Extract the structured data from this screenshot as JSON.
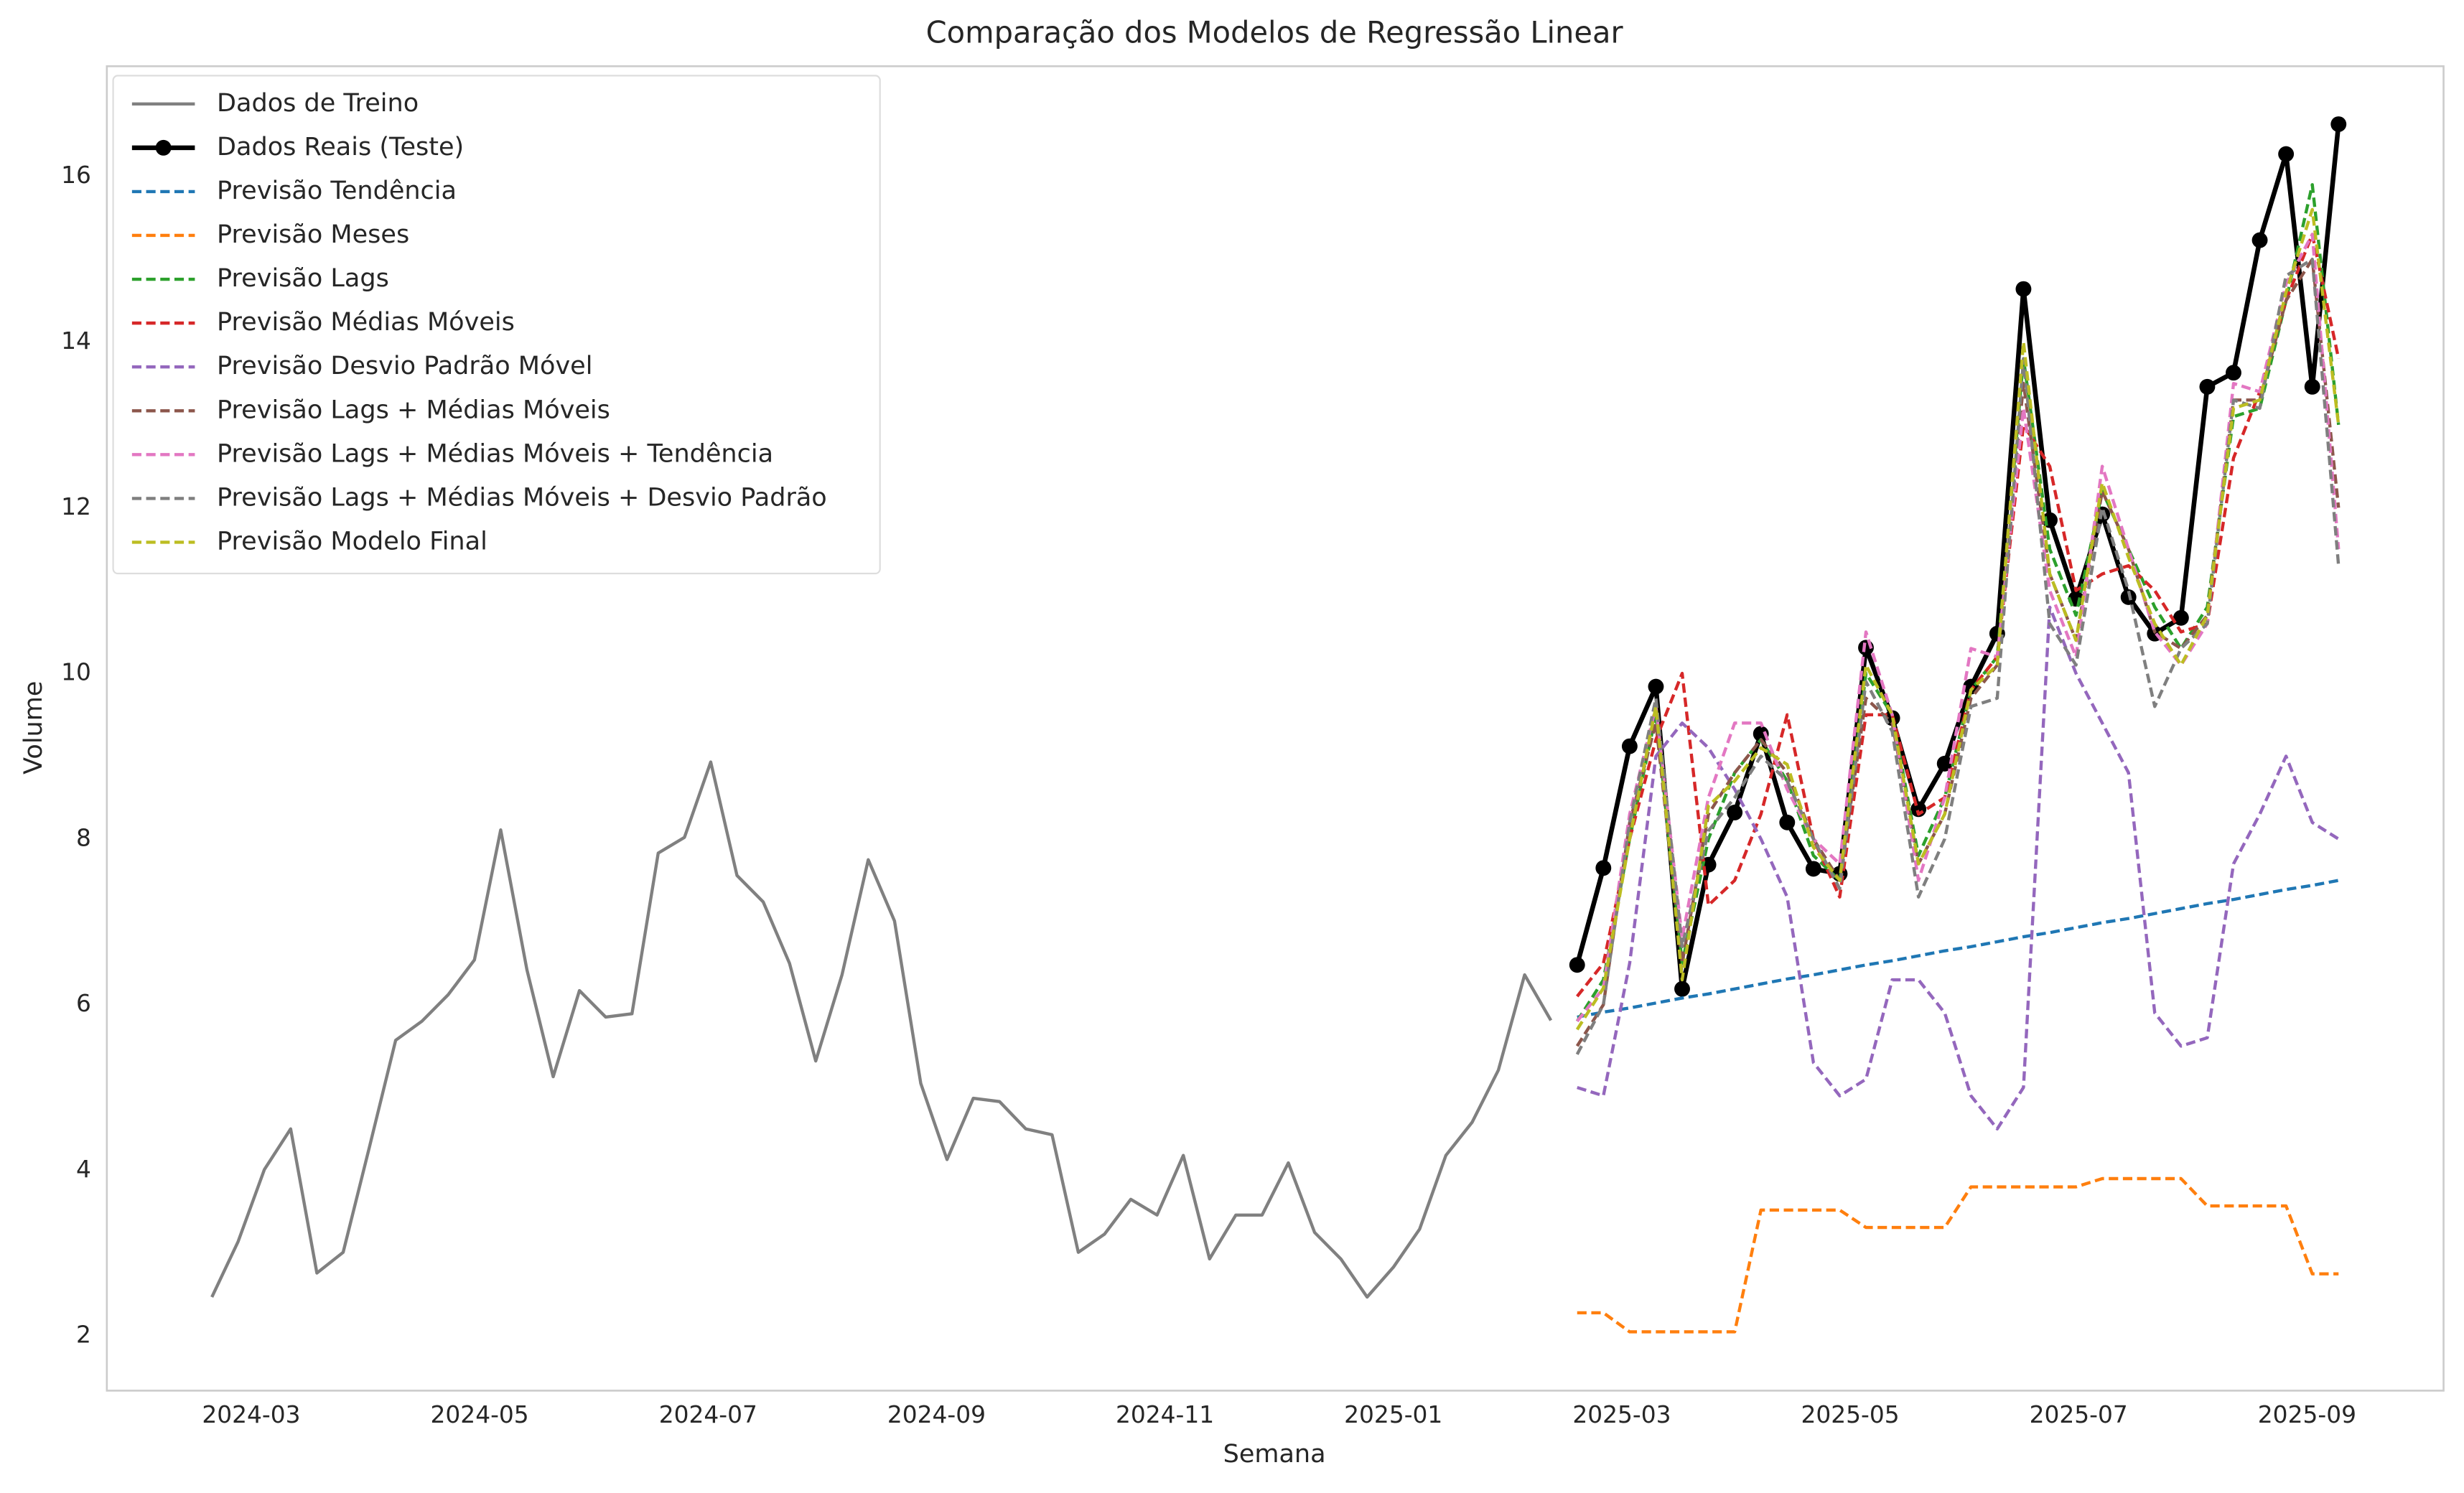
{
  "chart_data": {
    "type": "line",
    "title": "Comparação dos Modelos de Regressão Linear",
    "x_label": "Semana",
    "y_label": "Volume",
    "xlim": [
      -4,
      85
    ],
    "ylim": [
      1.34,
      17.33
    ],
    "grid": false,
    "legend": "upper left",
    "xticks": [
      {
        "value": 1.5,
        "label": "2024-03"
      },
      {
        "value": 10.2,
        "label": "2024-05"
      },
      {
        "value": 18.9,
        "label": "2024-07"
      },
      {
        "value": 27.6,
        "label": "2024-09"
      },
      {
        "value": 36.3,
        "label": "2024-11"
      },
      {
        "value": 45.0,
        "label": "2025-01"
      },
      {
        "value": 53.7,
        "label": "2025-03"
      },
      {
        "value": 62.4,
        "label": "2025-05"
      },
      {
        "value": 71.1,
        "label": "2025-07"
      },
      {
        "value": 79.8,
        "label": "2025-09"
      }
    ],
    "yticks": [
      2,
      4,
      6,
      8,
      10,
      12,
      14,
      16
    ],
    "series": [
      {
        "name": "Dados de Treino",
        "color": "#808080",
        "style": "solid",
        "width": 2,
        "marker": false,
        "x": [
          0,
          1,
          2,
          3,
          4,
          5,
          6,
          7,
          8,
          9,
          10,
          11,
          12,
          13,
          14,
          15,
          16,
          17,
          18,
          19,
          20,
          21,
          22,
          23,
          24,
          25,
          26,
          27,
          28,
          29,
          30,
          31,
          32,
          33,
          34,
          35,
          36,
          37,
          38,
          39,
          40,
          41,
          42,
          43,
          44,
          45,
          46,
          47,
          48,
          49,
          50,
          51
        ],
        "values": [
          2.47,
          3.14,
          4.01,
          4.5,
          2.76,
          3.01,
          4.28,
          5.57,
          5.8,
          6.12,
          6.54,
          8.11,
          6.42,
          5.13,
          6.17,
          5.85,
          5.89,
          7.83,
          8.02,
          8.93,
          7.56,
          7.24,
          6.5,
          5.32,
          6.36,
          7.75,
          7.01,
          5.05,
          4.13,
          4.87,
          4.83,
          4.5,
          4.43,
          3.01,
          3.23,
          3.65,
          3.46,
          4.18,
          2.93,
          3.46,
          3.46,
          4.09,
          3.25,
          2.93,
          2.47,
          2.83,
          3.29,
          4.18,
          4.58,
          5.21,
          6.36,
          5.81
        ]
      },
      {
        "name": "Dados Reais (Teste)",
        "color": "#000000",
        "style": "solid",
        "width": 3,
        "marker": true,
        "x": [
          52,
          53,
          54,
          55,
          56,
          57,
          58,
          59,
          60,
          61,
          62,
          63,
          64,
          65,
          66,
          67,
          68,
          69,
          70,
          71,
          72,
          73,
          74,
          75,
          76,
          77,
          78,
          79,
          80,
          81
        ],
        "values": [
          6.48,
          7.65,
          9.12,
          9.84,
          6.19,
          7.69,
          8.32,
          9.27,
          8.2,
          7.64,
          7.58,
          10.31,
          9.46,
          8.36,
          8.91,
          9.84,
          10.48,
          14.64,
          11.85,
          10.9,
          11.92,
          10.92,
          10.48,
          10.67,
          13.46,
          13.63,
          15.23,
          16.27,
          13.46,
          16.63
        ]
      },
      {
        "name": "Previsão Tendência",
        "color": "#1f77b4",
        "style": "dashed",
        "width": 2,
        "marker": false,
        "x": [
          52,
          53,
          54,
          55,
          56,
          57,
          58,
          59,
          60,
          61,
          62,
          63,
          64,
          65,
          66,
          67,
          68,
          69,
          70,
          71,
          72,
          73,
          74,
          75,
          76,
          77,
          78,
          79,
          80,
          81
        ],
        "values": [
          5.85,
          5.91,
          5.96,
          6.02,
          6.08,
          6.13,
          6.19,
          6.25,
          6.31,
          6.36,
          6.42,
          6.48,
          6.53,
          6.59,
          6.65,
          6.7,
          6.76,
          6.82,
          6.87,
          6.93,
          6.99,
          7.04,
          7.1,
          7.16,
          7.22,
          7.27,
          7.33,
          7.39,
          7.44,
          7.5
        ]
      },
      {
        "name": "Previsão Meses",
        "color": "#ff7f0e",
        "style": "dashed",
        "width": 2,
        "marker": false,
        "x": [
          52,
          53,
          54,
          55,
          56,
          57,
          58,
          59,
          60,
          61,
          62,
          63,
          64,
          65,
          66,
          67,
          68,
          69,
          70,
          71,
          72,
          73,
          74,
          75,
          76,
          77,
          78,
          79,
          80,
          81
        ],
        "values": [
          2.28,
          2.28,
          2.05,
          2.05,
          2.05,
          2.05,
          2.05,
          3.52,
          3.52,
          3.52,
          3.52,
          3.31,
          3.31,
          3.31,
          3.31,
          3.8,
          3.8,
          3.8,
          3.8,
          3.8,
          3.9,
          3.9,
          3.9,
          3.9,
          3.57,
          3.57,
          3.57,
          3.57,
          2.75,
          2.75
        ]
      },
      {
        "name": "Previsão Lags",
        "color": "#2ca02c",
        "style": "dashed",
        "width": 2,
        "marker": false,
        "x": [
          52,
          53,
          54,
          55,
          56,
          57,
          58,
          59,
          60,
          61,
          62,
          63,
          64,
          65,
          66,
          67,
          68,
          69,
          70,
          71,
          72,
          73,
          74,
          75,
          76,
          77,
          78,
          79,
          80,
          81
        ],
        "values": [
          5.8,
          6.3,
          8.0,
          9.5,
          6.5,
          8.0,
          8.8,
          9.2,
          8.7,
          7.8,
          7.5,
          10.0,
          9.5,
          7.8,
          8.5,
          9.8,
          10.2,
          13.8,
          11.5,
          10.7,
          12.2,
          11.5,
          10.8,
          10.3,
          10.8,
          13.1,
          13.2,
          14.5,
          15.9,
          13.0
        ]
      },
      {
        "name": "Previsão Médias Móveis",
        "color": "#d62728",
        "style": "dashed",
        "width": 2,
        "marker": false,
        "x": [
          52,
          53,
          54,
          55,
          56,
          57,
          58,
          59,
          60,
          61,
          62,
          63,
          64,
          65,
          66,
          67,
          68,
          69,
          70,
          71,
          72,
          73,
          74,
          75,
          76,
          77,
          78,
          79,
          80,
          81
        ],
        "values": [
          6.1,
          6.5,
          8.0,
          9.2,
          10.0,
          7.2,
          7.5,
          8.3,
          9.5,
          8.0,
          7.3,
          9.5,
          9.5,
          8.3,
          8.5,
          9.8,
          10.2,
          13.0,
          12.5,
          11.0,
          11.2,
          11.3,
          11.0,
          10.5,
          10.6,
          12.6,
          13.4,
          14.5,
          15.3,
          13.8
        ]
      },
      {
        "name": "Previsão Desvio Padrão Móvel",
        "color": "#9467bd",
        "style": "dashed",
        "width": 2,
        "marker": false,
        "x": [
          52,
          53,
          54,
          55,
          56,
          57,
          58,
          59,
          60,
          61,
          62,
          63,
          64,
          65,
          66,
          67,
          68,
          69,
          70,
          71,
          72,
          73,
          74,
          75,
          76,
          77,
          78,
          79,
          80,
          81
        ],
        "values": [
          5.0,
          4.9,
          6.5,
          9.0,
          9.4,
          9.1,
          8.6,
          8.0,
          7.3,
          5.3,
          4.9,
          5.1,
          6.3,
          6.3,
          5.9,
          4.9,
          4.5,
          5.0,
          10.8,
          10.0,
          9.4,
          8.8,
          5.9,
          5.5,
          5.6,
          7.7,
          8.3,
          9.0,
          8.2,
          8.0
        ]
      },
      {
        "name": "Previsão Lags + Médias Móveis",
        "color": "#8c564b",
        "style": "dashed",
        "width": 2,
        "marker": false,
        "x": [
          52,
          53,
          54,
          55,
          56,
          57,
          58,
          59,
          60,
          61,
          62,
          63,
          64,
          65,
          66,
          67,
          68,
          69,
          70,
          71,
          72,
          73,
          74,
          75,
          76,
          77,
          78,
          79,
          80,
          81
        ],
        "values": [
          5.5,
          6.0,
          8.2,
          9.4,
          6.5,
          8.3,
          8.8,
          9.2,
          8.8,
          8.0,
          7.5,
          9.7,
          9.4,
          7.7,
          8.3,
          9.7,
          10.1,
          13.5,
          11.2,
          10.4,
          12.2,
          11.5,
          10.5,
          10.3,
          10.7,
          13.3,
          13.3,
          14.5,
          15.0,
          12.0
        ]
      },
      {
        "name": "Previsão Lags + Médias Móveis + Tendência",
        "color": "#e377c2",
        "style": "dashed",
        "width": 2,
        "marker": false,
        "x": [
          52,
          53,
          54,
          55,
          56,
          57,
          58,
          59,
          60,
          61,
          62,
          63,
          64,
          65,
          66,
          67,
          68,
          69,
          70,
          71,
          72,
          73,
          74,
          75,
          76,
          77,
          78,
          79,
          80,
          81
        ],
        "values": [
          5.8,
          6.2,
          8.3,
          9.6,
          6.8,
          8.5,
          9.4,
          9.4,
          8.6,
          8.0,
          7.7,
          10.5,
          9.5,
          7.5,
          8.5,
          10.3,
          10.2,
          13.2,
          11.0,
          10.2,
          12.5,
          11.5,
          10.5,
          10.1,
          10.6,
          13.5,
          13.4,
          14.7,
          15.3,
          11.5
        ]
      },
      {
        "name": "Previsão Lags + Médias Móveis + Desvio Padrão",
        "color": "#7f7f7f",
        "style": "dashed",
        "width": 2,
        "marker": false,
        "x": [
          52,
          53,
          54,
          55,
          56,
          57,
          58,
          59,
          60,
          61,
          62,
          63,
          64,
          65,
          66,
          67,
          68,
          69,
          70,
          71,
          72,
          73,
          74,
          75,
          76,
          77,
          78,
          79,
          80,
          81
        ],
        "values": [
          5.4,
          6.0,
          8.2,
          9.7,
          6.7,
          8.1,
          8.5,
          9.0,
          8.7,
          8.0,
          7.4,
          9.9,
          9.3,
          7.3,
          8.0,
          9.6,
          9.7,
          13.8,
          10.6,
          10.1,
          12.0,
          11.0,
          9.6,
          10.3,
          10.6,
          13.3,
          13.2,
          14.8,
          15.0,
          11.3
        ]
      },
      {
        "name": "Previsão Modelo Final",
        "color": "#bcbd22",
        "style": "dashed",
        "width": 2,
        "marker": false,
        "x": [
          52,
          53,
          54,
          55,
          56,
          57,
          58,
          59,
          60,
          61,
          62,
          63,
          64,
          65,
          66,
          67,
          68,
          69,
          70,
          71,
          72,
          73,
          74,
          75,
          76,
          77,
          78,
          79,
          80,
          81
        ],
        "values": [
          5.7,
          6.2,
          8.0,
          9.6,
          6.3,
          8.4,
          8.7,
          9.1,
          8.9,
          7.9,
          7.5,
          10.1,
          9.5,
          7.7,
          8.3,
          9.8,
          10.1,
          14.0,
          11.2,
          10.4,
          12.3,
          11.4,
          10.6,
          10.1,
          10.7,
          13.2,
          13.3,
          14.6,
          15.6,
          13.0
        ]
      }
    ]
  }
}
